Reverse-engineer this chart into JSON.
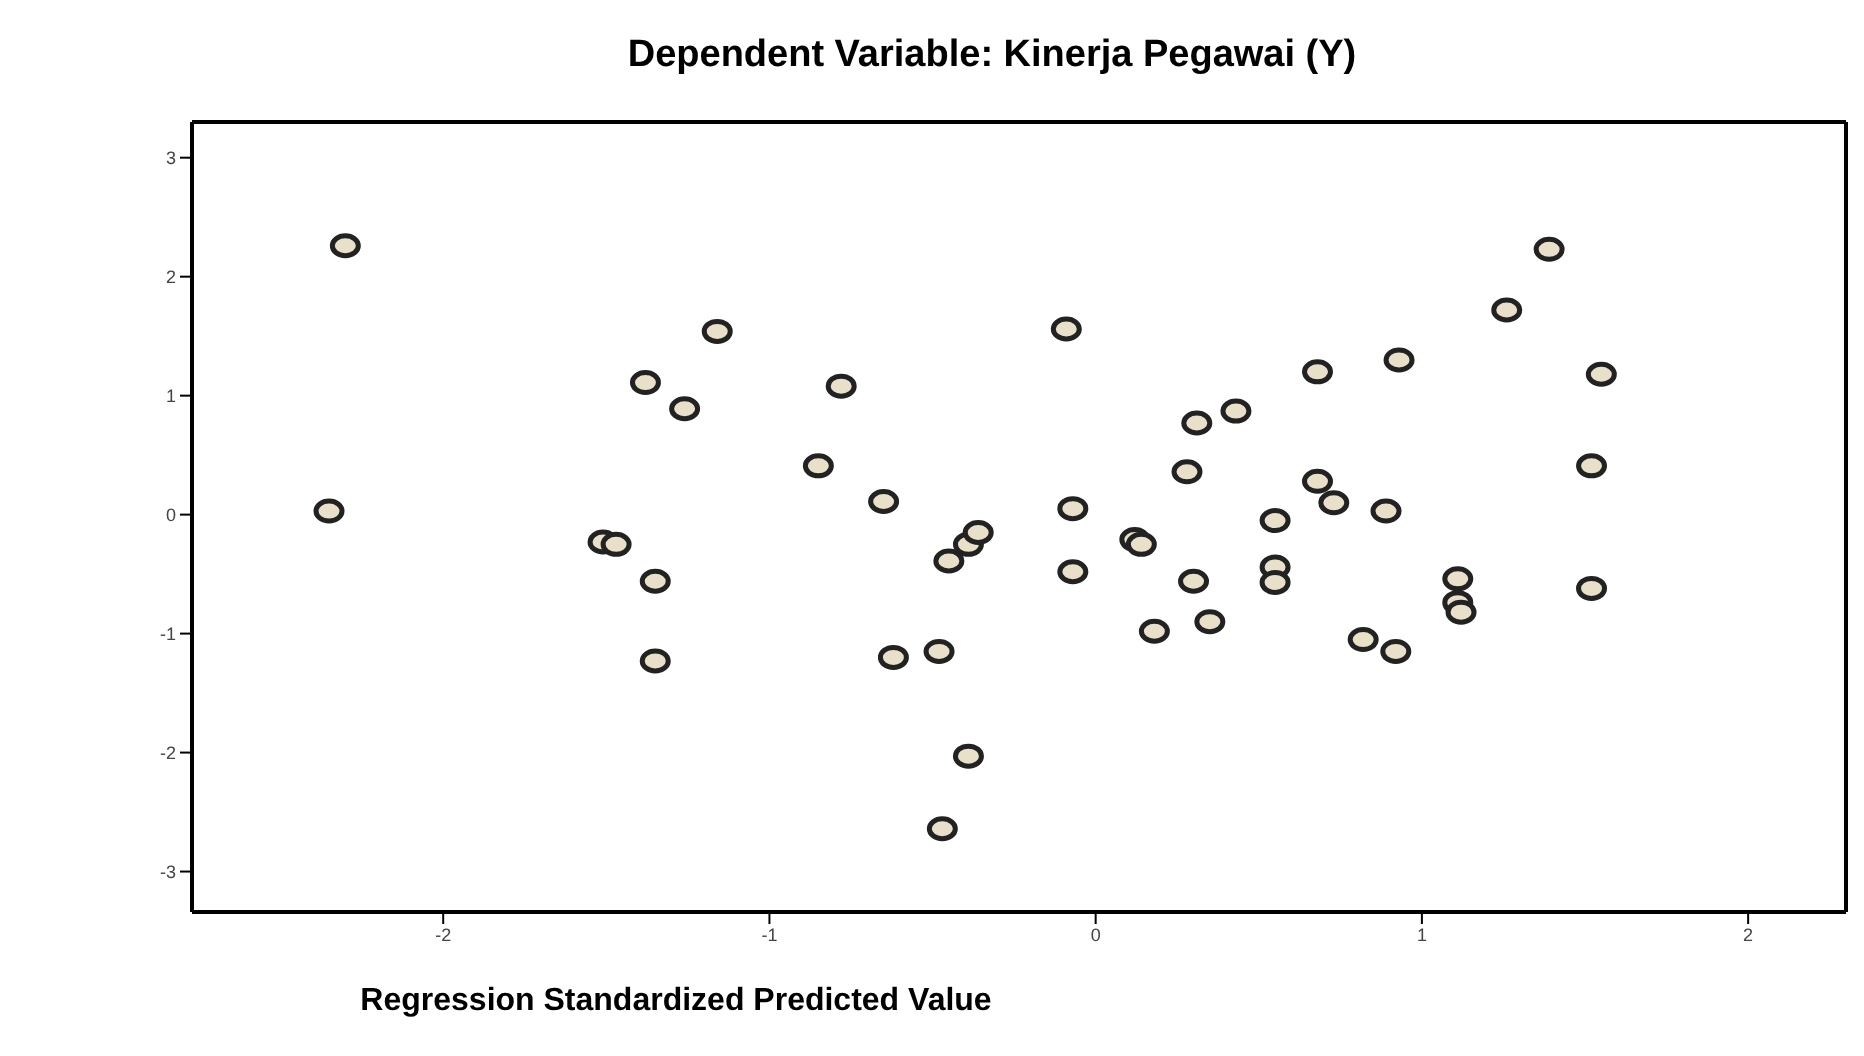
{
  "chart_data": {
    "type": "scatter",
    "title": "Dependent Variable: Kinerja Pegawai (Y)",
    "xlabel": "Regression Standardized Predicted Value",
    "marker": "circle",
    "grid": false,
    "legend": false,
    "xlim": [
      -2.77,
      2.3
    ],
    "ylim": [
      -3.34,
      3.3
    ],
    "xticks": [
      -2,
      -1,
      0,
      1,
      2
    ],
    "yticks": [
      -3,
      -2,
      -1,
      0,
      1,
      2,
      3
    ],
    "series": [
      {
        "color": "#222222",
        "x": [
          -2.3,
          -2.35,
          -1.38,
          -1.16,
          -1.26,
          -0.78,
          -0.85,
          -1.51,
          -1.47,
          -1.35,
          -1.35,
          -0.65,
          -0.62,
          -0.48,
          -0.45,
          -0.39,
          -0.36,
          -0.39,
          -0.47,
          -0.09,
          -0.07,
          -0.07,
          0.12,
          0.14,
          0.18,
          0.28,
          0.31,
          0.43,
          0.3,
          0.35,
          0.55,
          0.55,
          0.55,
          0.68,
          0.68,
          0.73,
          0.82,
          0.89,
          0.92,
          0.93,
          1.11,
          1.11,
          1.12,
          1.26,
          1.39,
          1.52,
          1.52,
          1.55
        ],
        "values": [
          2.26,
          0.03,
          1.11,
          1.54,
          0.89,
          1.08,
          0.41,
          -0.23,
          -0.25,
          -0.56,
          -1.23,
          0.11,
          -1.2,
          -1.15,
          -0.39,
          -0.25,
          -0.15,
          -2.03,
          -2.64,
          1.56,
          0.05,
          -0.48,
          -0.21,
          -0.25,
          -0.98,
          0.36,
          0.77,
          0.87,
          -0.56,
          -0.9,
          -0.05,
          -0.44,
          -0.57,
          1.2,
          0.28,
          0.1,
          -1.05,
          0.03,
          -1.15,
          1.3,
          -0.54,
          -0.74,
          -0.82,
          1.72,
          2.23,
          0.41,
          -0.62,
          1.18
        ]
      }
    ]
  }
}
